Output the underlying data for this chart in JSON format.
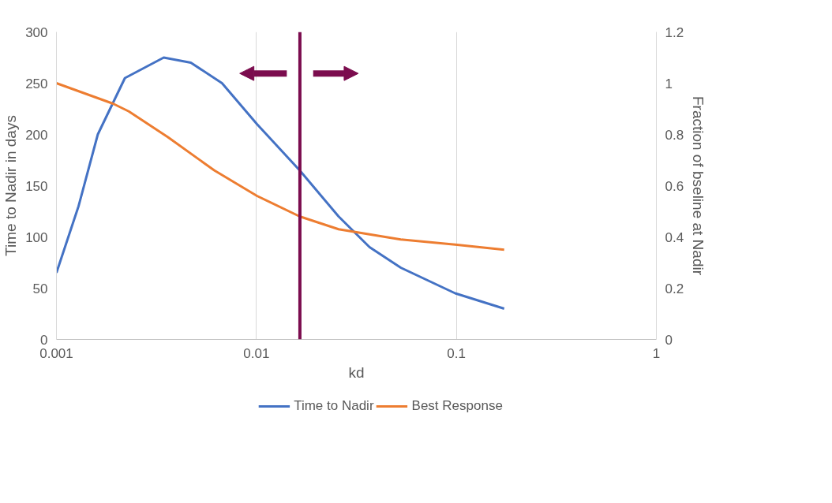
{
  "chart_data": {
    "type": "line",
    "xlabel": "kd",
    "ylabel": "Time to Nadir in days",
    "y2label": "Fraction of bseline at Nadir",
    "log": "x",
    "grid": "x",
    "legend": "bottom",
    "marker": "none",
    "line_style": "solid",
    "xlim": [
      0.001,
      1
    ],
    "xticks": [
      0.001,
      0.01,
      0.1,
      1
    ],
    "ylim": [
      0,
      300
    ],
    "yticks": [
      0,
      50,
      100,
      150,
      200,
      250,
      300
    ],
    "y2lim": [
      0,
      1.2
    ],
    "y2ticks": [
      0,
      0.2,
      0.4,
      0.6,
      0.8,
      1,
      1.2
    ],
    "series": [
      {
        "name": "Time to Nadir",
        "color": "#4472c4",
        "x": [
          0.001,
          0.00129,
          0.00161,
          0.0022,
          0.00344,
          0.0047,
          0.00673,
          0.01007,
          0.01645,
          0.02575,
          0.0368,
          0.0527,
          0.0986,
          0.1734
        ],
        "values": [
          65,
          130,
          200,
          255,
          275,
          270,
          250,
          210,
          165,
          120,
          90,
          70,
          45,
          30
        ]
      },
      {
        "name": "Best Response",
        "color": "#ed7d31",
        "axis": "y2",
        "x": [
          0.001,
          0.00192,
          0.0023,
          0.0036,
          0.00615,
          0.01007,
          0.01645,
          0.02575,
          0.0368,
          0.0527,
          0.0986,
          0.1734
        ],
        "values": [
          1.0,
          0.92,
          0.89,
          0.79,
          0.66,
          0.56,
          0.48,
          0.43,
          0.41,
          0.39,
          0.37,
          0.35
        ]
      }
    ],
    "ref_lines": [
      {
        "axis": "x",
        "value": 0.0165,
        "color": "#7b0c4e"
      }
    ]
  }
}
